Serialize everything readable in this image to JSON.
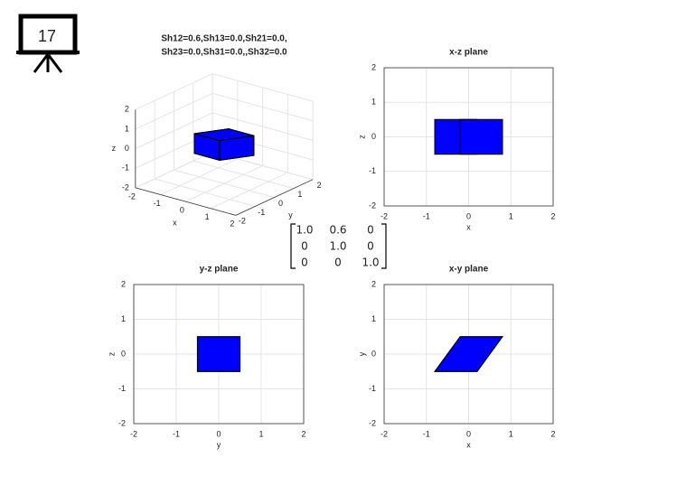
{
  "slide_number": "17",
  "matrix": {
    "rows": [
      [
        "1.0",
        "0.6",
        "0"
      ],
      [
        "0",
        "1.0",
        "0"
      ],
      [
        "0",
        "0",
        "1.0"
      ]
    ],
    "highlight_cell": [
      0,
      1
    ],
    "highlight_color": "#e00000"
  },
  "chart_data": [
    {
      "type": "box3d",
      "title": [
        "Sh12=0.6,Sh13=0.0,Sh21=0.0,",
        "Sh23=0.0,Sh31=0.0,,Sh32=0.0"
      ],
      "xlabel": "x",
      "ylabel": "y",
      "zlabel": "z",
      "xlim": [
        -2,
        2
      ],
      "ylim": [
        -2,
        2
      ],
      "zlim": [
        -2,
        2
      ],
      "xticks": [
        -2,
        -1,
        0,
        1,
        2
      ],
      "yticks": [
        -2,
        -1,
        0,
        1,
        2
      ],
      "zticks": [
        -2,
        -1,
        0,
        1,
        2
      ],
      "grid": true,
      "color": "#0000ff",
      "vertices": [
        [
          -0.8,
          -0.5,
          -0.5
        ],
        [
          0.2,
          -0.5,
          -0.5
        ],
        [
          0.8,
          0.5,
          -0.5
        ],
        [
          -0.2,
          0.5,
          -0.5
        ],
        [
          -0.8,
          -0.5,
          0.5
        ],
        [
          0.2,
          -0.5,
          0.5
        ],
        [
          0.8,
          0.5,
          0.5
        ],
        [
          -0.2,
          0.5,
          0.5
        ]
      ]
    },
    {
      "type": "polygon",
      "title": "x-z plane",
      "xlabel": "x",
      "ylabel": "z",
      "xlim": [
        -2,
        2
      ],
      "ylim": [
        -2,
        2
      ],
      "xticks": [
        -2,
        -1,
        0,
        1,
        2
      ],
      "yticks": [
        -2,
        -1,
        0,
        1,
        2
      ],
      "grid": true,
      "color": "#0000ff",
      "polygons": [
        {
          "x": [
            -0.8,
            0.2,
            0.2,
            -0.8
          ],
          "y": [
            -0.5,
            -0.5,
            0.5,
            0.5
          ]
        },
        {
          "x": [
            -0.2,
            0.8,
            0.8,
            -0.2
          ],
          "y": [
            -0.5,
            -0.5,
            0.5,
            0.5
          ]
        }
      ]
    },
    {
      "type": "polygon",
      "title": "y-z plane",
      "xlabel": "y",
      "ylabel": "z",
      "xlim": [
        -2,
        2
      ],
      "ylim": [
        -2,
        2
      ],
      "xticks": [
        -2,
        -1,
        0,
        1,
        2
      ],
      "yticks": [
        -2,
        -1,
        0,
        1,
        2
      ],
      "grid": true,
      "color": "#0000ff",
      "polygons": [
        {
          "x": [
            -0.5,
            0.5,
            0.5,
            -0.5
          ],
          "y": [
            -0.5,
            -0.5,
            0.5,
            0.5
          ]
        }
      ]
    },
    {
      "type": "polygon",
      "title": "x-y plane",
      "xlabel": "x",
      "ylabel": "y",
      "xlim": [
        -2,
        2
      ],
      "ylim": [
        -2,
        2
      ],
      "xticks": [
        -2,
        -1,
        0,
        1,
        2
      ],
      "yticks": [
        -2,
        -1,
        0,
        1,
        2
      ],
      "grid": true,
      "color": "#0000ff",
      "polygons": [
        {
          "x": [
            -0.8,
            0.2,
            0.8,
            -0.2
          ],
          "y": [
            -0.5,
            -0.5,
            0.5,
            0.5
          ]
        }
      ]
    }
  ]
}
